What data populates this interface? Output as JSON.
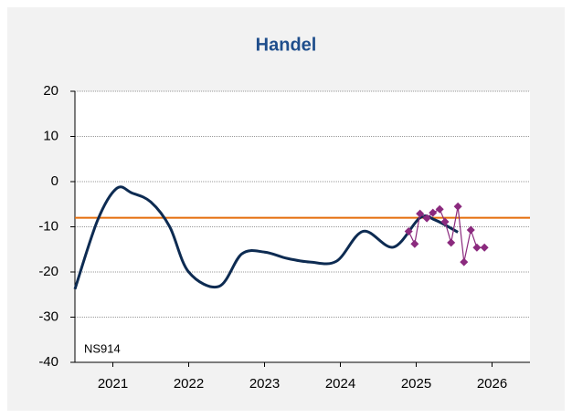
{
  "chart_data": {
    "type": "line",
    "title": "Handel",
    "annotation": "NS914",
    "xlim": [
      2021,
      2027
    ],
    "xticks": [
      {
        "value": 2021.5,
        "label": "2021"
      },
      {
        "value": 2022.5,
        "label": "2022"
      },
      {
        "value": 2023.5,
        "label": "2023"
      },
      {
        "value": 2024.5,
        "label": "2024"
      },
      {
        "value": 2025.5,
        "label": "2025"
      },
      {
        "value": 2026.5,
        "label": "2026"
      }
    ],
    "ylim": [
      -40,
      20
    ],
    "yticks": [
      -40,
      -30,
      -20,
      -10,
      0,
      10,
      20
    ],
    "grid": true,
    "reference_line": {
      "value": -8,
      "color": "#e46c0a"
    },
    "series": [
      {
        "color": "#0d2b52",
        "smooth": true,
        "x": [
          2021.0,
          2021.3,
          2021.55,
          2021.75,
          2022.0,
          2022.25,
          2022.5,
          2022.9,
          2023.2,
          2023.5,
          2023.8,
          2024.1,
          2024.45,
          2024.8,
          2025.2,
          2025.55,
          2025.75,
          2026.05
        ],
        "values": [
          -23.8,
          -8.5,
          -1.5,
          -2.5,
          -4.5,
          -10,
          -20,
          -23.2,
          -16,
          -15.6,
          -17,
          -17.8,
          -17.6,
          -11,
          -14.5,
          -8,
          -8.5,
          -11.2
        ]
      },
      {
        "color": "#8b2a7e",
        "marker": "diamond",
        "x": [
          2025.4,
          2025.48,
          2025.55,
          2025.64,
          2025.72,
          2025.81,
          2025.88,
          2025.96,
          2026.05,
          2026.13,
          2026.22,
          2026.3,
          2026.4
        ],
        "values": [
          -11,
          -13.8,
          -7.1,
          -8.1,
          -6.9,
          -6.1,
          -8.9,
          -13.5,
          -5.5,
          -17.8,
          -10.7,
          -14.6,
          -14.6
        ]
      }
    ]
  }
}
